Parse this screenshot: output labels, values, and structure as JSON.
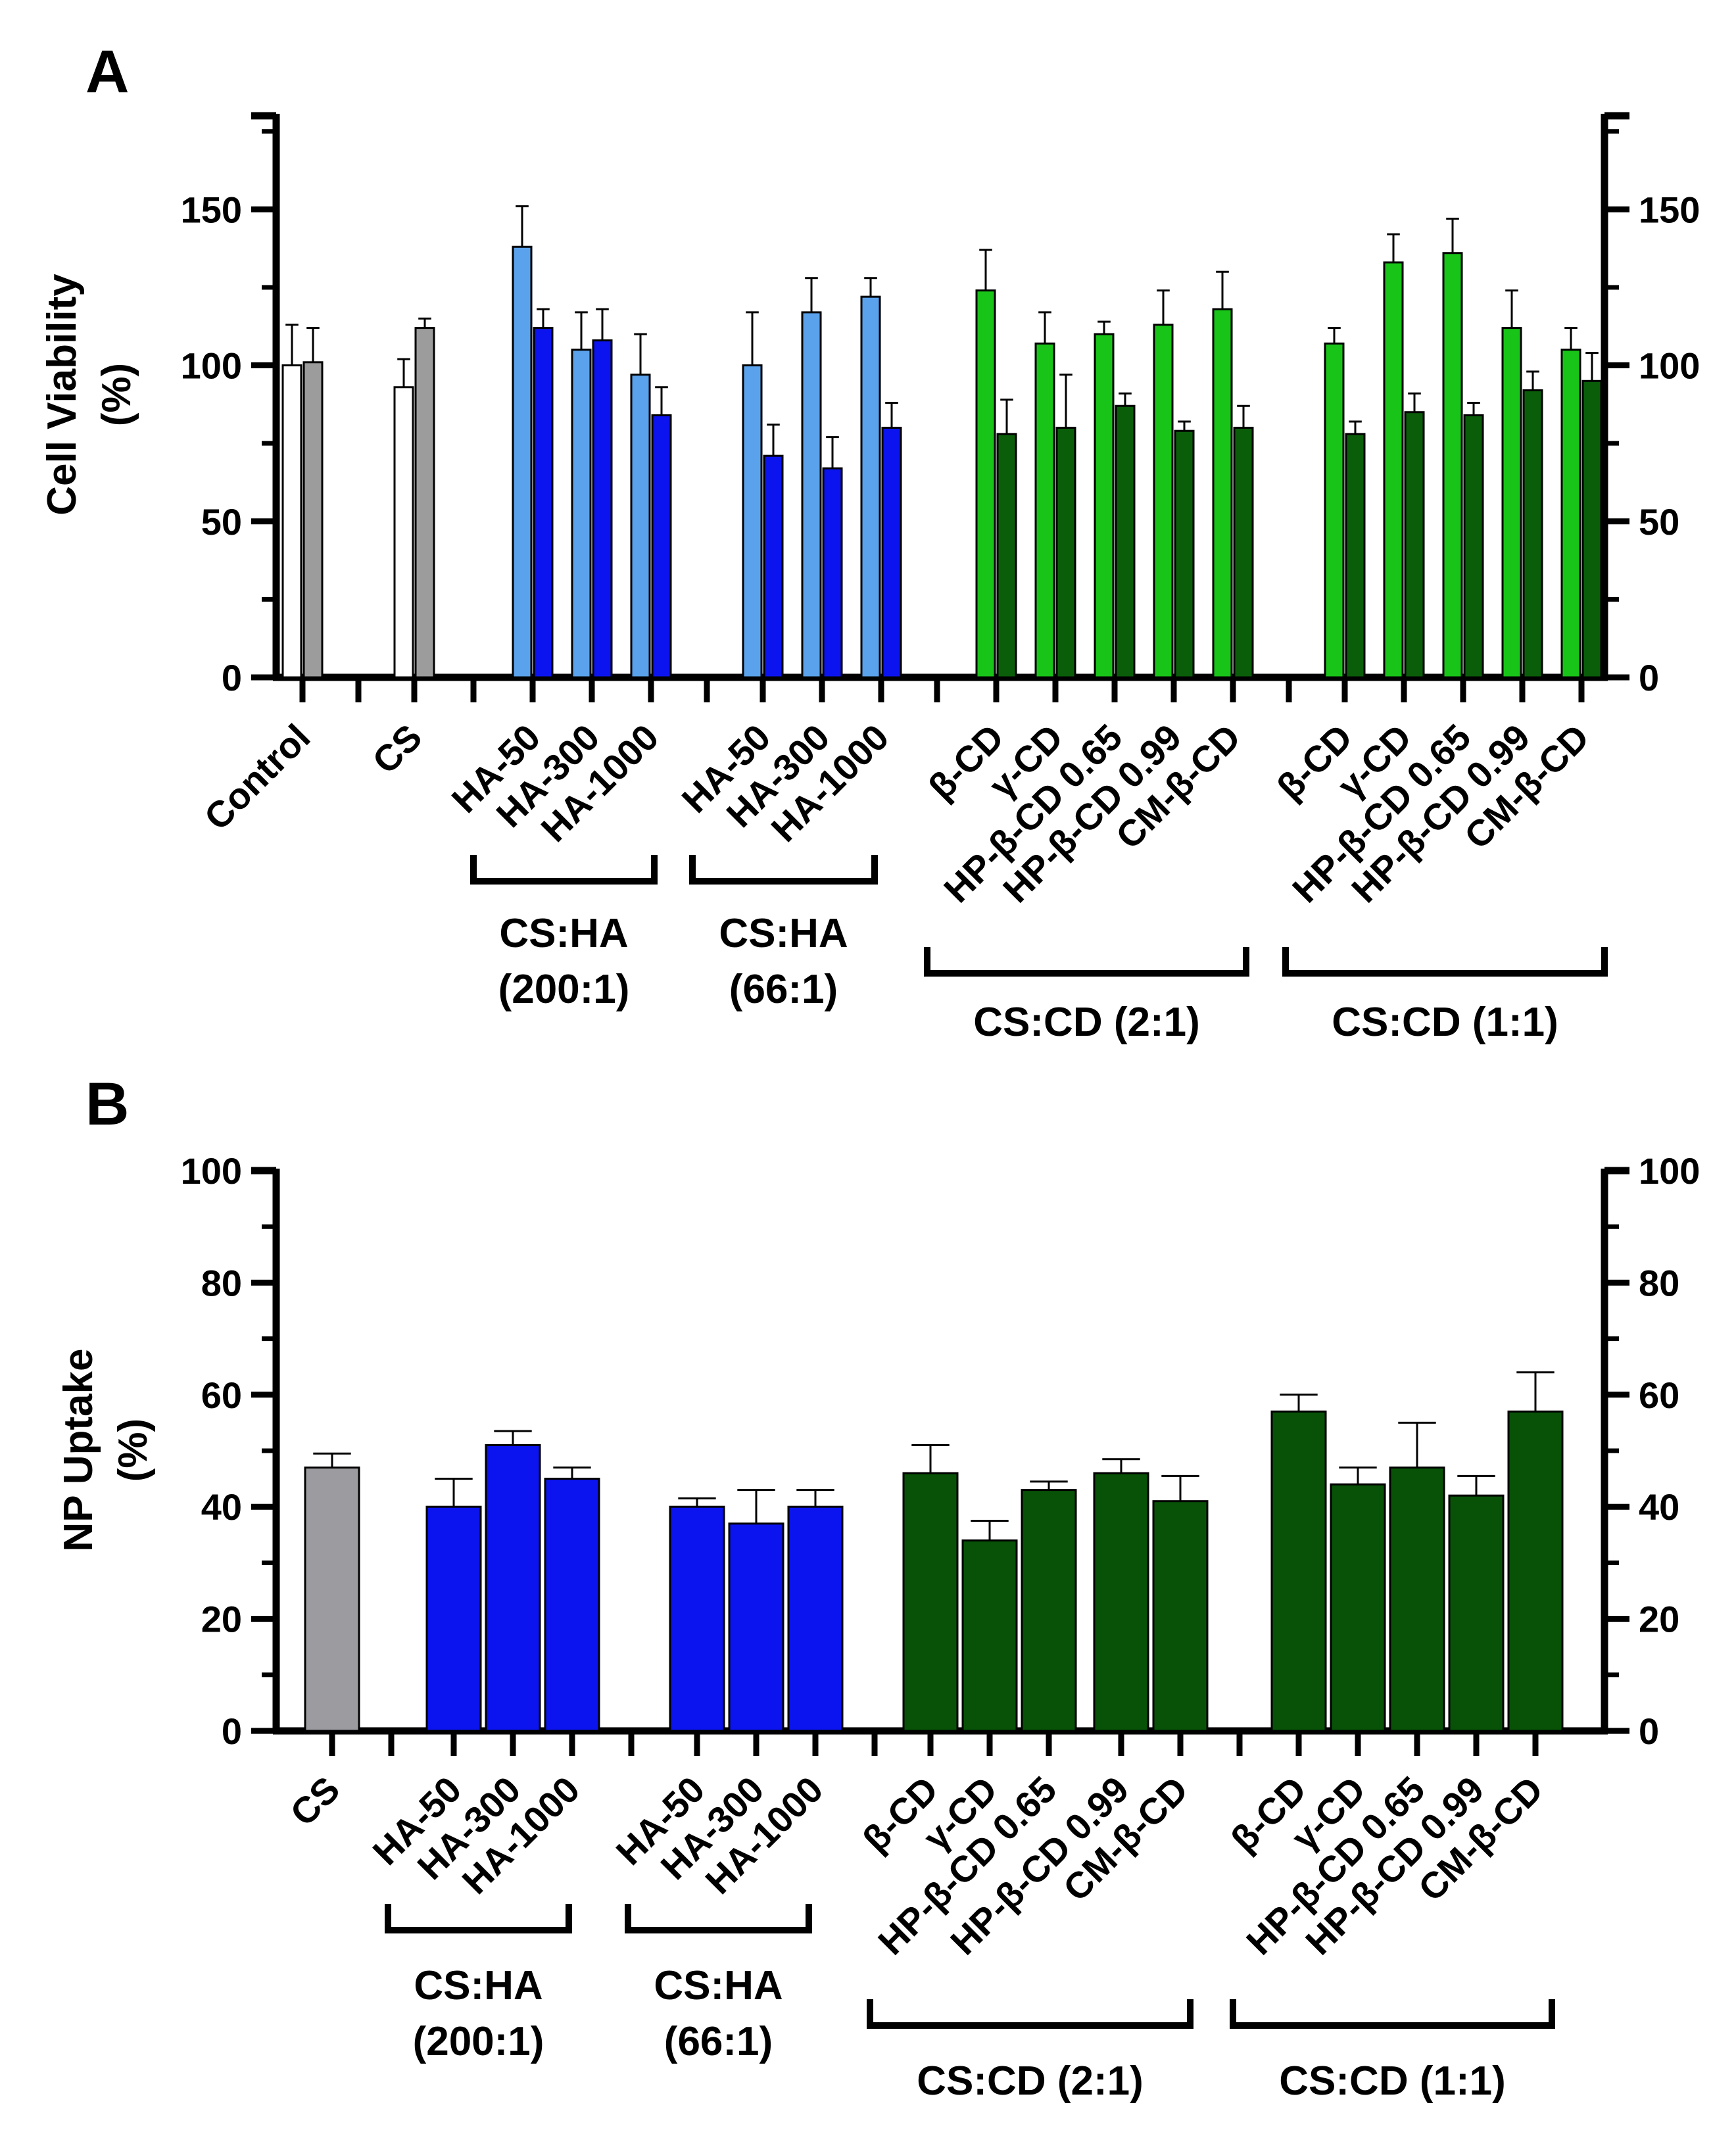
{
  "panels": [
    {
      "id": "A",
      "label": "A"
    },
    {
      "id": "B",
      "label": "B"
    }
  ],
  "chart_data": [
    {
      "panel": "A",
      "type": "bar",
      "ylabel": "Cell Viability",
      "ylabel_unit": "(%)",
      "ylim": [
        0,
        180
      ],
      "yticks": [
        0,
        50,
        100,
        150
      ],
      "secondary_y_axis": true,
      "grid": false,
      "categories": [
        "Control",
        "CS",
        "HA-50",
        "HA-300",
        "HA-1000",
        "HA-50",
        "HA-300",
        "HA-1000",
        "β-CD",
        "γ-CD",
        "HP-β-CD 0.65",
        "HP-β-CD 0.99",
        "CM-β-CD",
        "β-CD",
        "γ-CD",
        "HP-β-CD 0.65",
        "HP-β-CD 0.99",
        "CM-β-CD"
      ],
      "series": [
        {
          "values": [
            100,
            93,
            138,
            105,
            97,
            100,
            117,
            122,
            124,
            107,
            110,
            113,
            118,
            107,
            133,
            136,
            112,
            105
          ],
          "errors": [
            13,
            9,
            13,
            12,
            13,
            17,
            11,
            6,
            13,
            10,
            4,
            11,
            12,
            5,
            9,
            11,
            12,
            7
          ]
        },
        {
          "values": [
            101,
            112,
            112,
            108,
            84,
            71,
            67,
            80,
            78,
            80,
            87,
            79,
            80,
            78,
            85,
            84,
            92,
            95
          ],
          "errors": [
            11,
            3,
            6,
            10,
            9,
            10,
            10,
            8,
            11,
            17,
            4,
            3,
            7,
            4,
            6,
            4,
            6,
            9
          ]
        }
      ],
      "bar_colors": [
        [
          "#ffffff",
          "#9c9c9c"
        ],
        [
          "#ffffff",
          "#9c9c9c"
        ],
        [
          "#5aa2ec",
          "#0b14ee"
        ],
        [
          "#5aa2ec",
          "#0b14ee"
        ],
        [
          "#5aa2ec",
          "#0b14ee"
        ],
        [
          "#5aa2ec",
          "#0b14ee"
        ],
        [
          "#5aa2ec",
          "#0b14ee"
        ],
        [
          "#5aa2ec",
          "#0b14ee"
        ],
        [
          "#18c418",
          "#0a5e0a"
        ],
        [
          "#18c418",
          "#0a5e0a"
        ],
        [
          "#18c418",
          "#0a5e0a"
        ],
        [
          "#18c418",
          "#0a5e0a"
        ],
        [
          "#18c418",
          "#0a5e0a"
        ],
        [
          "#18c418",
          "#0a5e0a"
        ],
        [
          "#18c418",
          "#0a5e0a"
        ],
        [
          "#18c418",
          "#0a5e0a"
        ],
        [
          "#18c418",
          "#0a5e0a"
        ],
        [
          "#18c418",
          "#0a5e0a"
        ]
      ],
      "group_brackets": [
        {
          "label": "CS:HA",
          "label2": "(200:1)",
          "members": [
            2,
            4
          ]
        },
        {
          "label": "CS:HA",
          "label2": "(66:1)",
          "members": [
            5,
            7
          ]
        },
        {
          "label": "CS:CD (2:1)",
          "label2": "",
          "members": [
            8,
            12
          ]
        },
        {
          "label": "CS:CD (1:1)",
          "label2": "",
          "members": [
            13,
            17
          ]
        }
      ]
    },
    {
      "panel": "B",
      "type": "bar",
      "ylabel": "NP Uptake",
      "ylabel_unit": "(%)",
      "ylim": [
        0,
        100
      ],
      "yticks": [
        0,
        20,
        40,
        60,
        80,
        100
      ],
      "secondary_y_axis": true,
      "grid": false,
      "categories": [
        "CS",
        "HA-50",
        "HA-300",
        "HA-1000",
        "HA-50",
        "HA-300",
        "HA-1000",
        "β-CD",
        "γ-CD",
        "HP-β-CD 0.65",
        "HP-β-CD 0.99",
        "CM-β-CD",
        "β-CD",
        "γ-CD",
        "HP-β-CD 0.65",
        "HP-β-CD 0.99",
        "CM-β-CD"
      ],
      "values": [
        47,
        40,
        51,
        45,
        40,
        37,
        40,
        46,
        34,
        43,
        46,
        41,
        57,
        44,
        47,
        42,
        57
      ],
      "errors": [
        2.5,
        5,
        2.5,
        2,
        1.5,
        6,
        3,
        5,
        3.5,
        1.5,
        2.5,
        4.5,
        3,
        3,
        8,
        3.5,
        7
      ],
      "bar_colors": [
        "#9c9ca0",
        "#0b14ee",
        "#0b14ee",
        "#0b14ee",
        "#0b14ee",
        "#0b14ee",
        "#0b14ee",
        "#075207",
        "#075207",
        "#075207",
        "#075207",
        "#075207",
        "#075207",
        "#075207",
        "#075207",
        "#075207",
        "#075207"
      ],
      "group_brackets": [
        {
          "label": "CS:HA",
          "label2": "(200:1)",
          "members": [
            1,
            3
          ]
        },
        {
          "label": "CS:HA",
          "label2": "(66:1)",
          "members": [
            4,
            6
          ]
        },
        {
          "label": "CS:CD (2:1)",
          "label2": "",
          "members": [
            7,
            11
          ]
        },
        {
          "label": "CS:CD (1:1)",
          "label2": "",
          "members": [
            12,
            16
          ]
        }
      ]
    }
  ]
}
